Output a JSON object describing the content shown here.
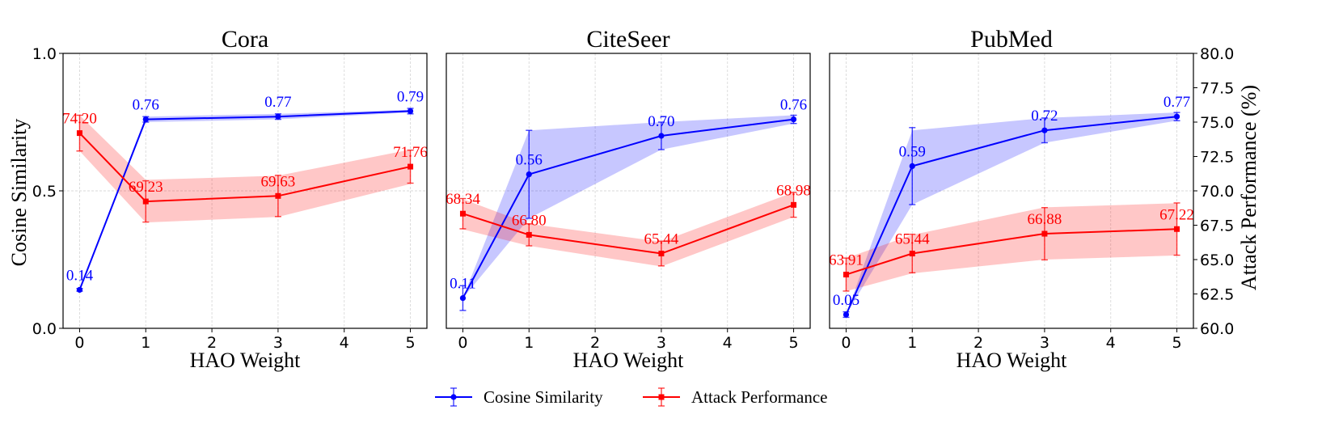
{
  "chart_data": [
    {
      "type": "line",
      "title": "Cora",
      "xlabel": "HAO Weight",
      "ylabel": "Cosine Similarity",
      "x": [
        0,
        1,
        3,
        5
      ],
      "xlim": [
        -0.25,
        5.25
      ],
      "ylim": [
        0,
        1
      ],
      "y2lim": [
        60,
        80
      ],
      "grid": true,
      "series": [
        {
          "name": "Cosine Similarity",
          "axis": "left",
          "color": "#0000ff",
          "values": [
            0.14,
            0.76,
            0.77,
            0.79
          ],
          "errors": [
            0.005,
            0.01,
            0.01,
            0.01
          ],
          "band_lower": [
            0.14,
            0.75,
            0.76,
            0.785
          ],
          "band_upper": [
            0.14,
            0.77,
            0.78,
            0.795
          ],
          "labels": [
            "0.14",
            "0.76",
            "0.77",
            "0.79"
          ]
        },
        {
          "name": "Attack Performance",
          "axis": "right",
          "color": "#ff0000",
          "values": [
            74.2,
            69.23,
            69.63,
            71.76
          ],
          "errors": [
            1.3,
            1.5,
            1.5,
            1.2
          ],
          "band_lower": [
            72.9,
            67.7,
            68.1,
            70.5
          ],
          "band_upper": [
            75.5,
            70.8,
            71.1,
            73.0
          ],
          "labels": [
            "74.20",
            "69.23",
            "69.63",
            "71.76"
          ]
        }
      ]
    },
    {
      "type": "line",
      "title": "CiteSeer",
      "xlabel": "HAO Weight",
      "ylabel": "",
      "x": [
        0,
        1,
        3,
        5
      ],
      "xlim": [
        -0.25,
        5.25
      ],
      "ylim": [
        0,
        1
      ],
      "y2lim": [
        60,
        80
      ],
      "grid": true,
      "series": [
        {
          "name": "Cosine Similarity",
          "axis": "left",
          "color": "#0000ff",
          "values": [
            0.11,
            0.56,
            0.7,
            0.76
          ],
          "errors": [
            0.045,
            0.16,
            0.05,
            0.015
          ],
          "band_lower": [
            0.11,
            0.4,
            0.65,
            0.745
          ],
          "band_upper": [
            0.11,
            0.72,
            0.75,
            0.775
          ],
          "labels": [
            "0.11",
            "0.56",
            "0.70",
            "0.76"
          ]
        },
        {
          "name": "Attack Performance",
          "axis": "right",
          "color": "#ff0000",
          "values": [
            68.34,
            66.8,
            65.44,
            68.98
          ],
          "errors": [
            1.1,
            0.8,
            0.9,
            0.9
          ],
          "band_lower": [
            67.2,
            66.0,
            64.5,
            68.1
          ],
          "band_upper": [
            69.4,
            67.6,
            66.3,
            69.9
          ],
          "labels": [
            "68.34",
            "66.80",
            "65.44",
            "68.98"
          ]
        }
      ]
    },
    {
      "type": "line",
      "title": "PubMed",
      "xlabel": "HAO Weight",
      "ylabel": "",
      "y2label": "Attack Performance (%)",
      "x": [
        0,
        1,
        3,
        5
      ],
      "xlim": [
        -0.25,
        5.25
      ],
      "ylim": [
        0,
        1
      ],
      "y2lim": [
        60,
        80
      ],
      "grid": true,
      "series": [
        {
          "name": "Cosine Similarity",
          "axis": "left",
          "color": "#0000ff",
          "values": [
            0.05,
            0.59,
            0.72,
            0.77
          ],
          "errors": [
            0.01,
            0.14,
            0.045,
            0.015
          ],
          "band_lower": [
            0.05,
            0.45,
            0.675,
            0.755
          ],
          "band_upper": [
            0.05,
            0.72,
            0.765,
            0.785
          ],
          "labels": [
            "0.05",
            "0.59",
            "0.72",
            "0.77"
          ]
        },
        {
          "name": "Attack Performance",
          "axis": "right",
          "color": "#ff0000",
          "values": [
            63.91,
            65.44,
            66.88,
            67.22
          ],
          "errors": [
            1.2,
            1.4,
            1.9,
            1.9
          ],
          "band_lower": [
            62.7,
            64.0,
            65.0,
            65.3
          ],
          "band_upper": [
            65.1,
            66.8,
            68.8,
            69.1
          ],
          "labels": [
            "63.91",
            "65.44",
            "66.88",
            "67.22"
          ]
        }
      ]
    }
  ],
  "axes": {
    "x_ticks": [
      "0",
      "1",
      "2",
      "3",
      "4",
      "5"
    ],
    "y_left_ticks": [
      "0.0",
      "0.5",
      "1.0"
    ],
    "y_right_ticks": [
      "60.0",
      "62.5",
      "65.0",
      "67.5",
      "70.0",
      "72.5",
      "75.0",
      "77.5",
      "80.0"
    ]
  },
  "legend": {
    "position": "bottom-center",
    "items": [
      {
        "label": "Cosine Similarity",
        "color": "#0000ff"
      },
      {
        "label": "Attack Performance",
        "color": "#ff0000"
      }
    ]
  }
}
